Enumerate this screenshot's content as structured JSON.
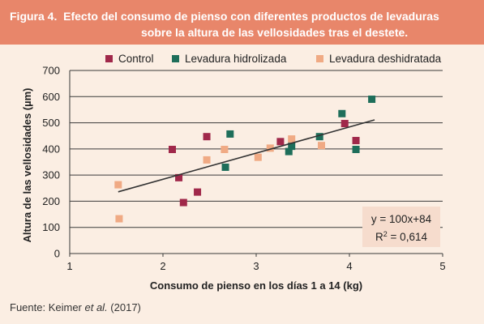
{
  "figure": {
    "label": "Figura 4.",
    "title_line1": "Efecto del consumo de pienso con diferentes productos de levaduras",
    "title_line2": "sobre la altura de las vellosidades tras el destete."
  },
  "source": {
    "prefix": "Fuente: Keimer ",
    "etal": "et al.",
    "suffix": " (2017)"
  },
  "colors": {
    "background": "#fbeee3",
    "title_bar": "#e8866a",
    "Control": "#a0284a",
    "Levadura hidrolizada": "#1e6e5a",
    "Levadura deshidratada": "#f0aa84",
    "trendline": "#333333",
    "equation_box": "#f6dccd"
  },
  "chart_data": {
    "type": "scatter",
    "xlabel": "Consumo de pienso en los días 1 a 14 (kg)",
    "ylabel": "Altura de las vellosidades (µm)",
    "xlim": [
      1,
      5
    ],
    "ylim": [
      0,
      700
    ],
    "x_ticks": [
      "1",
      "2",
      "3",
      "4",
      "5"
    ],
    "y_ticks": [
      "0",
      "100",
      "200",
      "300",
      "400",
      "500",
      "600",
      "700"
    ],
    "grid": "horizontal",
    "legend_position": "top",
    "series": [
      {
        "name": "Control",
        "points": [
          [
            2.1,
            398
          ],
          [
            2.17,
            290
          ],
          [
            2.22,
            195
          ],
          [
            2.37,
            235
          ],
          [
            2.47,
            447
          ],
          [
            3.26,
            428
          ],
          [
            3.95,
            497
          ],
          [
            4.07,
            432
          ]
        ]
      },
      {
        "name": "Levadura hidrolizada",
        "points": [
          [
            2.67,
            330
          ],
          [
            2.72,
            457
          ],
          [
            3.35,
            390
          ],
          [
            3.38,
            410
          ],
          [
            3.68,
            447
          ],
          [
            3.92,
            535
          ],
          [
            4.07,
            398
          ],
          [
            4.24,
            590
          ]
        ]
      },
      {
        "name": "Levadura deshidratada",
        "points": [
          [
            1.52,
            263
          ],
          [
            1.53,
            133
          ],
          [
            2.47,
            358
          ],
          [
            2.66,
            398
          ],
          [
            3.02,
            368
          ],
          [
            3.15,
            403
          ],
          [
            3.38,
            438
          ],
          [
            3.7,
            413
          ]
        ]
      }
    ],
    "trendline": {
      "x0": 1.52,
      "x1": 4.27,
      "slope": 100,
      "intercept": 84
    },
    "annotation": {
      "line1": "y = 100x+84",
      "line2_prefix": "R",
      "line2_sup": "2",
      "line2_suffix": " = 0,614"
    }
  }
}
